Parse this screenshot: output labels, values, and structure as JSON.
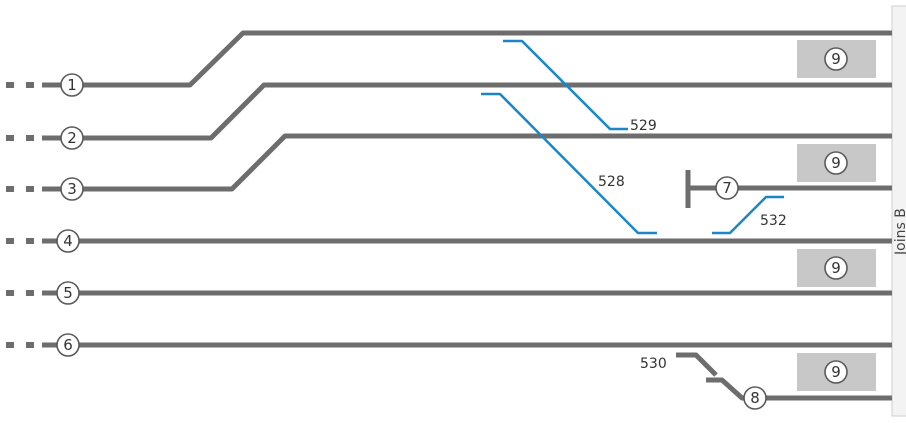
{
  "tracks": [
    {
      "id": "track-1",
      "label": "1"
    },
    {
      "id": "track-2",
      "label": "2"
    },
    {
      "id": "track-3",
      "label": "3"
    },
    {
      "id": "track-4",
      "label": "4"
    },
    {
      "id": "track-5",
      "label": "5"
    },
    {
      "id": "track-6",
      "label": "6"
    },
    {
      "id": "track-7",
      "label": "7"
    },
    {
      "id": "track-8",
      "label": "8"
    }
  ],
  "platforms": [
    "9",
    "9",
    "9",
    "9"
  ],
  "switches": [
    "529",
    "528",
    "532",
    "530"
  ],
  "edge_label": "Joins B",
  "colors": {
    "track": "#6d6d6d",
    "switch": "#1a86c8",
    "platform": "#c8c8c8"
  }
}
